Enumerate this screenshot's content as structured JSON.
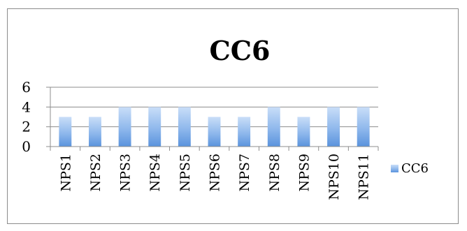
{
  "chart_data": {
    "type": "bar",
    "title": "CC6",
    "categories": [
      "NPS1",
      "NPS2",
      "NPS3",
      "NPS4",
      "NPS5",
      "NPS6",
      "NPS7",
      "NPS8",
      "NPS9",
      "NPS10",
      "NPS11"
    ],
    "series": [
      {
        "name": "CC6",
        "values": [
          3,
          3,
          4,
          4,
          4,
          3,
          3,
          4,
          3,
          4,
          4
        ]
      }
    ],
    "xlabel": "",
    "ylabel": "",
    "ylim": [
      0,
      6
    ],
    "yticks": [
      0,
      2,
      4,
      6
    ],
    "grid": true,
    "legend_position": "right",
    "colors": {
      "bar_light": "#c6dcf7",
      "bar_dark": "#5a93dd",
      "grid": "#8c8c8c",
      "axis": "#8c8c8c",
      "text": "#000000"
    }
  }
}
